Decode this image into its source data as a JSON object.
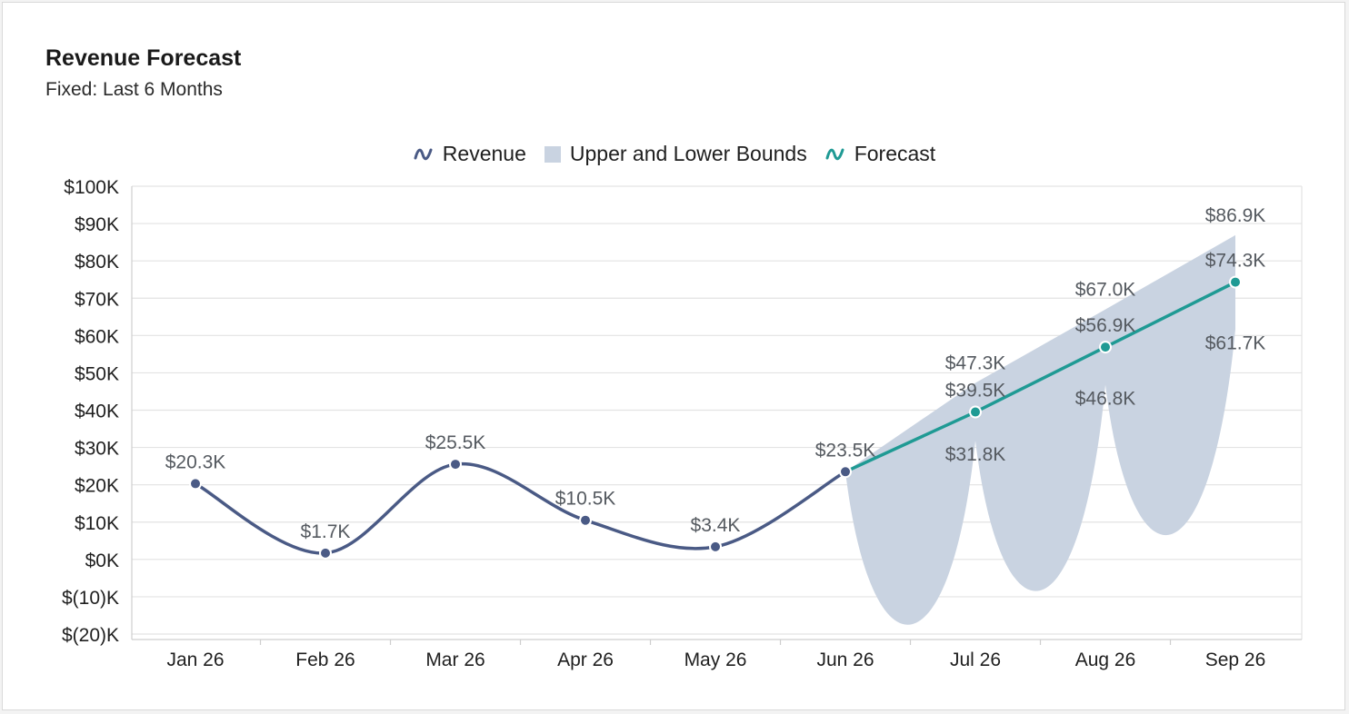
{
  "header": {
    "title": "Revenue Forecast",
    "subtitle": "Fixed: Last 6 Months"
  },
  "colors": {
    "revenue": "#4a5a85",
    "forecast": "#1f9a94",
    "bounds": "#c9d3e1",
    "grid": "#e3e3e3",
    "axis": "#cfcfcf"
  },
  "chart_data": {
    "type": "line",
    "title": "Revenue Forecast",
    "subtitle": "Fixed: Last 6 Months",
    "categories": [
      "Jan 26",
      "Feb 26",
      "Mar 26",
      "Apr 26",
      "May 26",
      "Jun 26",
      "Jul 26",
      "Aug 26",
      "Sep 26"
    ],
    "ylim": [
      -20,
      100
    ],
    "yticks": [
      100,
      90,
      80,
      70,
      60,
      50,
      40,
      30,
      20,
      10,
      0,
      -10,
      -20
    ],
    "ytick_labels": [
      "$100K",
      "$90K",
      "$80K",
      "$70K",
      "$60K",
      "$50K",
      "$40K",
      "$30K",
      "$20K",
      "$10K",
      "$0K",
      "$(10)K",
      "$(20)K"
    ],
    "grid": true,
    "legend_position": "top-center",
    "series": [
      {
        "name": "Revenue",
        "values": [
          20.3,
          1.7,
          25.5,
          10.5,
          3.4,
          23.5,
          null,
          null,
          null
        ],
        "labels": [
          "$20.3K",
          "$1.7K",
          "$25.5K",
          "$10.5K",
          "$3.4K",
          "$23.5K",
          "",
          "",
          ""
        ]
      },
      {
        "name": "Upper and Lower Bounds",
        "upper": [
          null,
          null,
          null,
          null,
          null,
          23.5,
          47.3,
          67.0,
          86.9
        ],
        "lower": [
          null,
          null,
          null,
          null,
          null,
          23.5,
          31.8,
          46.8,
          61.7
        ],
        "upper_labels": [
          "",
          "",
          "",
          "",
          "",
          "",
          "$47.3K",
          "$67.0K",
          "$86.9K"
        ],
        "lower_labels": [
          "",
          "",
          "",
          "",
          "",
          "",
          "$31.8K",
          "$46.8K",
          "$61.7K"
        ]
      },
      {
        "name": "Forecast",
        "values": [
          null,
          null,
          null,
          null,
          null,
          23.5,
          39.5,
          56.9,
          74.3
        ],
        "labels": [
          "",
          "",
          "",
          "",
          "",
          "",
          "$39.5K",
          "$56.9K",
          "$74.3K"
        ]
      }
    ]
  }
}
